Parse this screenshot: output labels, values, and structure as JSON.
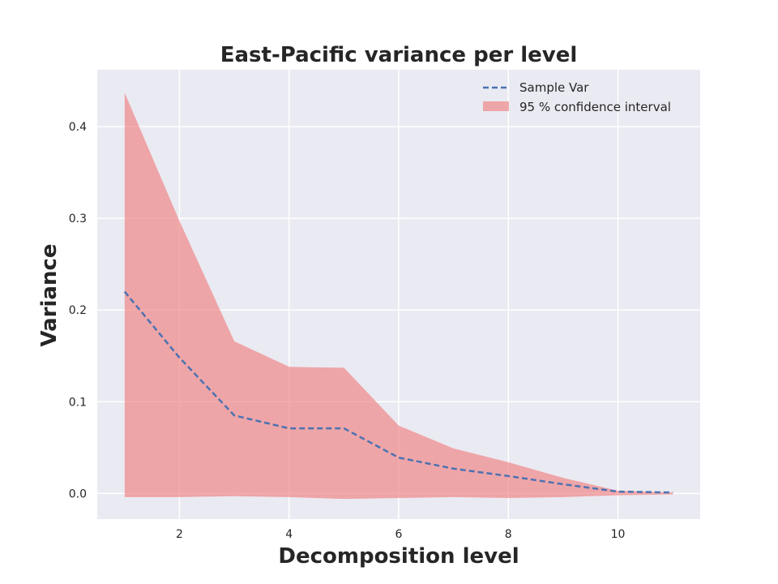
{
  "chart_data": {
    "type": "line",
    "title": "East-Pacific variance per level",
    "xlabel": "Decomposition level",
    "ylabel": "Variance",
    "xlim": [
      0.5,
      11.5
    ],
    "ylim": [
      -0.028,
      0.462
    ],
    "xticks": [
      2,
      4,
      6,
      8,
      10
    ],
    "yticks": [
      0.0,
      0.1,
      0.2,
      0.3,
      0.4
    ],
    "ytick_labels": [
      "0.0",
      "0.1",
      "0.2",
      "0.3",
      "0.4"
    ],
    "grid": true,
    "legend_position": "top-right",
    "x": [
      1,
      2,
      3,
      4,
      5,
      6,
      7,
      8,
      9,
      10,
      11
    ],
    "series": [
      {
        "name": "Sample Var",
        "style": "dashed",
        "color": "#4c72b0",
        "values": [
          0.22,
          0.148,
          0.085,
          0.071,
          0.071,
          0.039,
          0.027,
          0.019,
          0.01,
          0.002,
          0.001
        ]
      }
    ],
    "band": {
      "name": "95 % confidence interval",
      "color": "#f08080",
      "lower": [
        -0.004,
        -0.004,
        -0.003,
        -0.004,
        -0.006,
        -0.005,
        -0.004,
        -0.005,
        -0.004,
        -0.002,
        -0.001
      ],
      "upper": [
        0.437,
        0.297,
        0.166,
        0.138,
        0.137,
        0.074,
        0.049,
        0.034,
        0.017,
        0.003,
        0.001
      ]
    },
    "colors": {
      "plot_background": "#eaeaf2",
      "grid": "#ffffff"
    }
  }
}
